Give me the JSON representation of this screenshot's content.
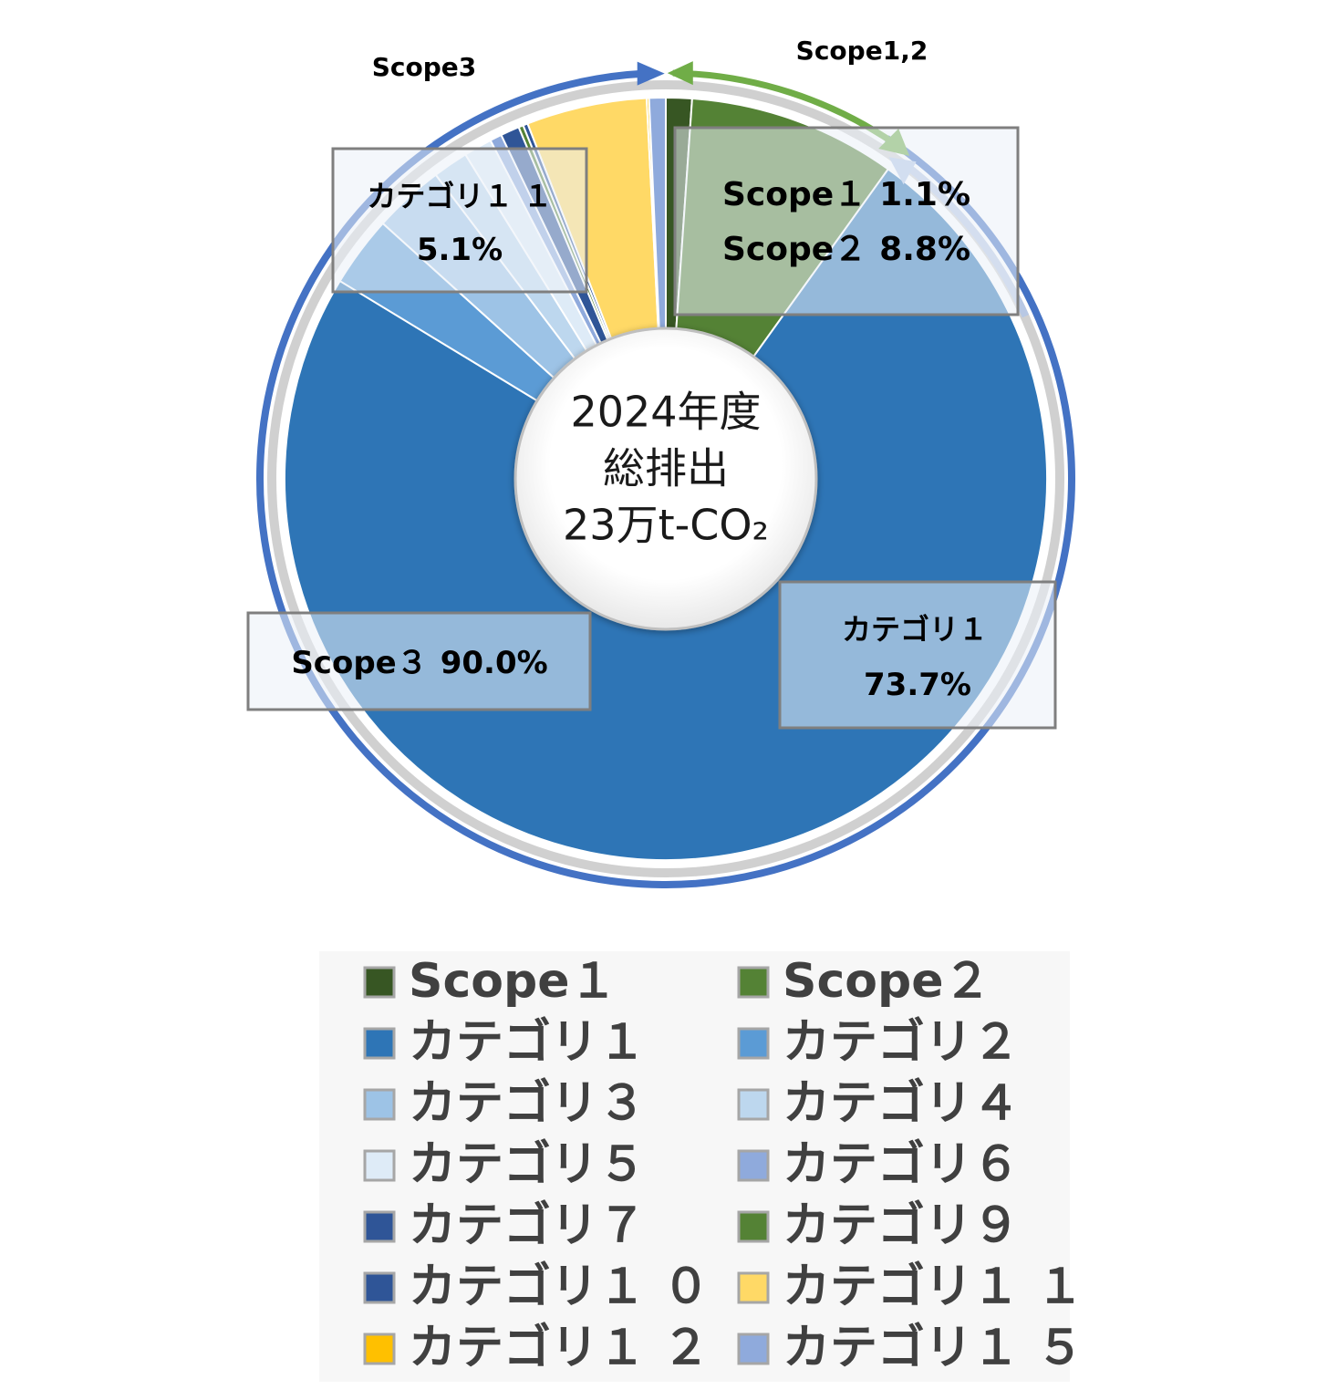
{
  "chart_data": {
    "type": "donut",
    "center_text": [
      "2024年度",
      "総排出",
      "23万t-CO₂"
    ],
    "categories": [
      "Scope１",
      "Scope２",
      "カテゴリ１",
      "カテゴリ２",
      "カテゴリ３",
      "カテゴリ４",
      "カテゴリ５",
      "カテゴリ６",
      "カテゴリ７",
      "カテゴリ９",
      "カテゴリ１ ０",
      "カテゴリ１ １",
      "カテゴリ１ ２",
      "カテゴリ１ ５"
    ],
    "values": [
      1.1,
      8.8,
      73.7,
      3.0,
      3.0,
      1.5,
      1.2,
      0.5,
      0.8,
      0.2,
      0.2,
      5.1,
      0.1,
      0.7
    ],
    "value_labels": [
      "1.1%",
      "8.8%",
      "73.7%",
      null,
      null,
      null,
      null,
      null,
      null,
      null,
      null,
      "5.1%",
      null,
      null
    ],
    "colors": [
      "#375623",
      "#548235",
      "#2e75b6",
      "#5b9bd5",
      "#9dc3e6",
      "#bdd7ee",
      "#deebf7",
      "#8faadc",
      "#2f5597",
      "#548235",
      "#2f5597",
      "#ffd966",
      "#ffc000",
      "#8faadc"
    ],
    "groups": [
      {
        "name": "Scope3",
        "label": "Scope３",
        "value": 90.0,
        "value_label": "90.0%",
        "color": "#4472c4"
      },
      {
        "name": "Scope1,2",
        "color": "#70ad47"
      }
    ],
    "legend": true
  }
}
